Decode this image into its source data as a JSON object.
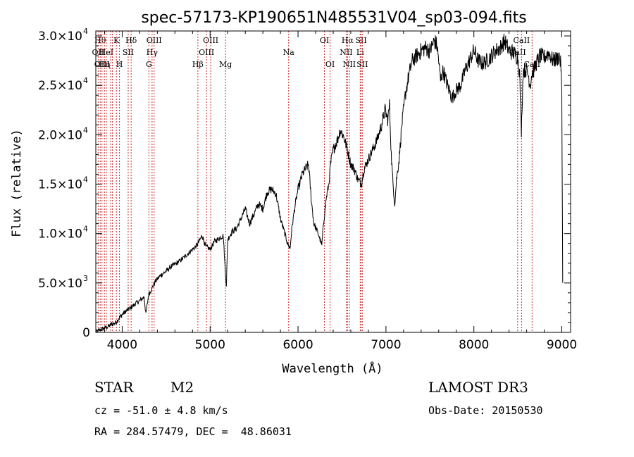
{
  "chart_data": {
    "type": "line",
    "title": "spec-57173-KP190651N485531V04_sp03-094.fits",
    "xlabel": "Wavelength (Å)",
    "ylabel": "Flux (relative)",
    "xlim": [
      3700,
      9100
    ],
    "ylim": [
      0,
      30500
    ],
    "xticks": [
      {
        "value": 4000,
        "label": "4000"
      },
      {
        "value": 5000,
        "label": "5000"
      },
      {
        "value": 6000,
        "label": "6000"
      },
      {
        "value": 7000,
        "label": "7000"
      },
      {
        "value": 8000,
        "label": "8000"
      },
      {
        "value": 9000,
        "label": "9000"
      }
    ],
    "yticks": [
      {
        "value": 0,
        "mant": "0",
        "exp": ""
      },
      {
        "value": 5000,
        "mant": "5.0×10",
        "exp": "3"
      },
      {
        "value": 10000,
        "mant": "1.0×10",
        "exp": "4"
      },
      {
        "value": 15000,
        "mant": "1.5×10",
        "exp": "4"
      },
      {
        "value": 20000,
        "mant": "2.0×10",
        "exp": "4"
      },
      {
        "value": 25000,
        "mant": "2.5×10",
        "exp": "4"
      },
      {
        "value": 30000,
        "mant": "3.0×10",
        "exp": "4"
      }
    ],
    "series": [
      {
        "name": "flux",
        "x": [
          3700,
          3760,
          3820,
          3880,
          3930,
          3970,
          4000,
          4050,
          4100,
          4150,
          4200,
          4250,
          4270,
          4300,
          4330,
          4380,
          4440,
          4500,
          4560,
          4620,
          4680,
          4740,
          4800,
          4850,
          4880,
          4910,
          4950,
          5000,
          5050,
          5100,
          5150,
          5170,
          5185,
          5200,
          5250,
          5300,
          5350,
          5400,
          5450,
          5500,
          5550,
          5600,
          5650,
          5700,
          5750,
          5800,
          5850,
          5880,
          5910,
          5930,
          5960,
          6000,
          6050,
          6080,
          6120,
          6150,
          6180,
          6230,
          6270,
          6290,
          6320,
          6350,
          6370,
          6400,
          6450,
          6480,
          6520,
          6560,
          6600,
          6640,
          6680,
          6720,
          6750,
          6800,
          6850,
          6900,
          6950,
          6990,
          7020,
          7040,
          7060,
          7080,
          7100,
          7120,
          7150,
          7180,
          7220,
          7260,
          7300,
          7350,
          7400,
          7450,
          7500,
          7550,
          7580,
          7600,
          7620,
          7650,
          7700,
          7750,
          7800,
          7850,
          7900,
          7950,
          8000,
          8050,
          8100,
          8150,
          8200,
          8250,
          8300,
          8350,
          8400,
          8450,
          8480,
          8500,
          8520,
          8540,
          8560,
          8580,
          8600,
          8620,
          8640,
          8660,
          8680,
          8700,
          8750,
          8800,
          8850,
          8900,
          8950,
          8970,
          8990,
          9000,
          9010
        ],
        "y": [
          0,
          300,
          500,
          800,
          1000,
          1500,
          1800,
          2200,
          2500,
          2900,
          3200,
          3600,
          1800,
          3800,
          4300,
          5200,
          5800,
          6200,
          6700,
          7000,
          7400,
          7900,
          8400,
          8800,
          9300,
          9800,
          8700,
          8400,
          9200,
          9500,
          9800,
          6500,
          4800,
          9400,
          10200,
          10500,
          11500,
          12500,
          11000,
          12000,
          13000,
          12500,
          14200,
          14500,
          14000,
          11500,
          10000,
          9000,
          8500,
          10500,
          12500,
          14500,
          16000,
          16500,
          17000,
          13500,
          11000,
          10000,
          8800,
          11000,
          13500,
          15000,
          17000,
          18500,
          19500,
          20500,
          19800,
          18500,
          17000,
          16500,
          15500,
          15000,
          16500,
          17500,
          18500,
          19500,
          21000,
          22500,
          21500,
          23000,
          18000,
          15000,
          13000,
          15500,
          17500,
          21000,
          24000,
          26000,
          27500,
          28000,
          28500,
          28800,
          28500,
          29500,
          29000,
          27500,
          25500,
          26500,
          25000,
          23700,
          24500,
          25000,
          26500,
          27500,
          28500,
          27500,
          27200,
          27500,
          28000,
          28500,
          28800,
          29500,
          28500,
          28300,
          28000,
          27800,
          26300,
          20300,
          26500,
          26500,
          26600,
          26000,
          25000,
          26200,
          26500,
          27000,
          28000,
          27800,
          28300,
          27500,
          27700,
          28000,
          27000,
          24000,
          5000
        ]
      }
    ],
    "line_marks": [
      {
        "wl": 3727,
        "label": "OII",
        "row": 1
      },
      {
        "wl": 3750,
        "label": "Hθ",
        "row": 0
      },
      {
        "wl": 3770,
        "label": "OIII",
        "row": 2
      },
      {
        "wl": 3798,
        "label": "Hη",
        "row": 2
      },
      {
        "wl": 3820,
        "label": "HeI",
        "row": 1
      },
      {
        "wl": 3869,
        "label": "",
        "row": 0
      },
      {
        "wl": 3889,
        "label": "",
        "row": 0
      },
      {
        "wl": 3934,
        "label": "K",
        "row": 0
      },
      {
        "wl": 3969,
        "label": "H",
        "row": 2
      },
      {
        "wl": 4068,
        "label": "SII",
        "row": 1
      },
      {
        "wl": 4102,
        "label": "Hδ",
        "row": 0
      },
      {
        "wl": 4304,
        "label": "G",
        "row": 2
      },
      {
        "wl": 4340,
        "label": "Hγ",
        "row": 1
      },
      {
        "wl": 4363,
        "label": "OIII",
        "row": 0
      },
      {
        "wl": 4861,
        "label": "Hβ",
        "row": 2
      },
      {
        "wl": 4959,
        "label": "OIII",
        "row": 1
      },
      {
        "wl": 5007,
        "label": "OIII",
        "row": 0
      },
      {
        "wl": 5175,
        "label": "Mg",
        "row": 2
      },
      {
        "wl": 5893,
        "label": "Na",
        "row": 1
      },
      {
        "wl": 6300,
        "label": "OI",
        "row": 0
      },
      {
        "wl": 6364,
        "label": "OI",
        "row": 2
      },
      {
        "wl": 6548,
        "label": "NII",
        "row": 1
      },
      {
        "wl": 6563,
        "label": "Hα",
        "row": 0
      },
      {
        "wl": 6584,
        "label": "NII",
        "row": 2
      },
      {
        "wl": 6707,
        "label": "Li",
        "row": 1
      },
      {
        "wl": 6717,
        "label": "SII",
        "row": 0
      },
      {
        "wl": 6731,
        "label": "SII",
        "row": 2
      },
      {
        "wl": 8498,
        "label": "CaII",
        "row": 1
      },
      {
        "wl": 8542,
        "label": "CaII",
        "row": 0
      },
      {
        "wl": 8662,
        "label": "CaII",
        "row": 2
      }
    ]
  },
  "info": {
    "class": "STAR",
    "subclass": "M2",
    "cz": "cz = -51.0 ± 4.8 km/s",
    "radec": "RA = 284.57479, DEC =  48.86031",
    "survey": "LAMOST DR3",
    "obsdate": "Obs-Date: 20150530"
  },
  "colors": {
    "line_mark": "#cc2b2b",
    "spectrum": "#000000",
    "axis": "#000000"
  }
}
